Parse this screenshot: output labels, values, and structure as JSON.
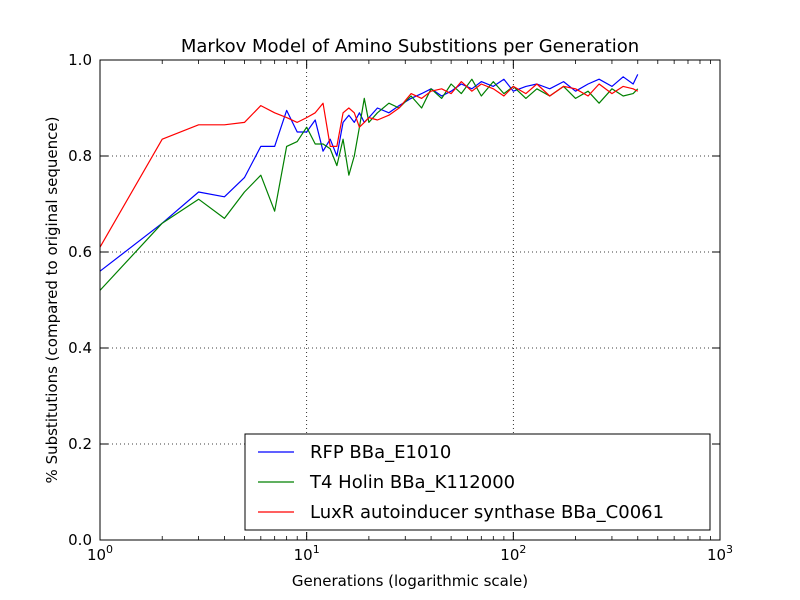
{
  "chart_data": {
    "type": "line",
    "title": "Markov Model of Amino Substitions per Generation",
    "xlabel": "Generations (logarithmic scale)",
    "ylabel": "% Substitutions (compared to original sequence)",
    "xscale": "log",
    "xlim": [
      1,
      1000
    ],
    "ylim": [
      0.0,
      1.0
    ],
    "grid": true,
    "legend_position": "lower-right",
    "x_ticks": [
      {
        "base": "10",
        "exp": "0",
        "value": 1
      },
      {
        "base": "10",
        "exp": "1",
        "value": 10
      },
      {
        "base": "10",
        "exp": "2",
        "value": 100
      },
      {
        "base": "10",
        "exp": "3",
        "value": 1000
      }
    ],
    "y_ticks": [
      "0.0",
      "0.2",
      "0.4",
      "0.6",
      "0.8",
      "1.0"
    ],
    "series": [
      {
        "name": "RFP BBa_E1010",
        "color": "#0000ff",
        "x": [
          1,
          2,
          3,
          4,
          5,
          6,
          7,
          8,
          9,
          10,
          11,
          12,
          13,
          14,
          15,
          16,
          17,
          18,
          19,
          20,
          22,
          25,
          28,
          32,
          36,
          40,
          45,
          50,
          56,
          63,
          70,
          80,
          90,
          100,
          115,
          130,
          150,
          175,
          200,
          230,
          260,
          300,
          340,
          380,
          400
        ],
        "y": [
          0.56,
          0.66,
          0.725,
          0.715,
          0.755,
          0.82,
          0.82,
          0.895,
          0.85,
          0.85,
          0.875,
          0.81,
          0.835,
          0.8,
          0.87,
          0.885,
          0.87,
          0.89,
          0.87,
          0.88,
          0.9,
          0.89,
          0.905,
          0.92,
          0.93,
          0.94,
          0.925,
          0.935,
          0.95,
          0.94,
          0.955,
          0.945,
          0.96,
          0.935,
          0.945,
          0.95,
          0.94,
          0.955,
          0.935,
          0.95,
          0.96,
          0.945,
          0.965,
          0.95,
          0.97
        ]
      },
      {
        "name": "T4 Holin BBa_K112000",
        "color": "#008000",
        "x": [
          1,
          2,
          3,
          4,
          5,
          6,
          7,
          8,
          9,
          10,
          11,
          12,
          13,
          14,
          15,
          16,
          17,
          18,
          19,
          20,
          22,
          25,
          28,
          32,
          36,
          40,
          45,
          50,
          56,
          63,
          70,
          80,
          90,
          100,
          115,
          130,
          150,
          175,
          200,
          230,
          260,
          300,
          340,
          380,
          400
        ],
        "y": [
          0.52,
          0.66,
          0.71,
          0.67,
          0.725,
          0.76,
          0.685,
          0.82,
          0.83,
          0.86,
          0.825,
          0.825,
          0.815,
          0.78,
          0.835,
          0.76,
          0.8,
          0.86,
          0.92,
          0.87,
          0.89,
          0.91,
          0.9,
          0.925,
          0.9,
          0.94,
          0.92,
          0.95,
          0.93,
          0.96,
          0.925,
          0.955,
          0.93,
          0.945,
          0.92,
          0.94,
          0.925,
          0.945,
          0.92,
          0.935,
          0.91,
          0.94,
          0.925,
          0.93,
          0.94
        ]
      },
      {
        "name": "LuxR autoinducer synthase BBa_C0061",
        "color": "#ff0000",
        "x": [
          1,
          2,
          3,
          4,
          5,
          6,
          7,
          8,
          9,
          10,
          11,
          12,
          13,
          14,
          15,
          16,
          17,
          18,
          19,
          20,
          22,
          25,
          28,
          32,
          36,
          40,
          45,
          50,
          56,
          63,
          70,
          80,
          90,
          100,
          115,
          130,
          150,
          175,
          200,
          230,
          260,
          300,
          340,
          380,
          400
        ],
        "y": [
          0.61,
          0.835,
          0.865,
          0.865,
          0.87,
          0.905,
          0.89,
          0.88,
          0.87,
          0.88,
          0.89,
          0.91,
          0.82,
          0.82,
          0.89,
          0.9,
          0.89,
          0.86,
          0.87,
          0.88,
          0.875,
          0.885,
          0.9,
          0.93,
          0.92,
          0.935,
          0.94,
          0.93,
          0.955,
          0.935,
          0.95,
          0.94,
          0.925,
          0.945,
          0.93,
          0.95,
          0.925,
          0.945,
          0.94,
          0.925,
          0.95,
          0.93,
          0.945,
          0.94,
          0.935
        ]
      }
    ]
  }
}
